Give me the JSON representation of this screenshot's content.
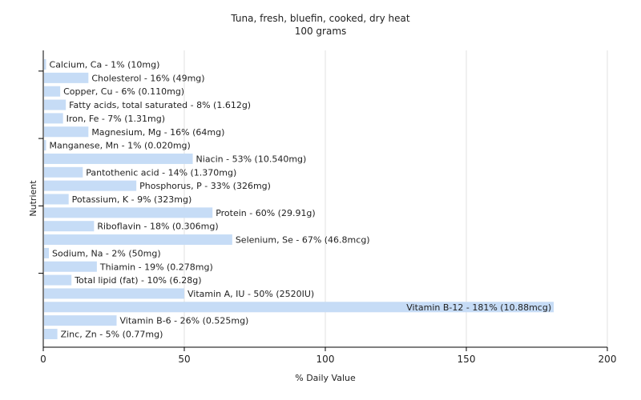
{
  "chart_data": {
    "type": "bar",
    "orientation": "horizontal",
    "title": "Tuna, fresh, bluefin, cooked, dry heat",
    "subtitle": "100 grams",
    "xlabel": "% Daily Value",
    "ylabel": "Nutrient",
    "xlim": [
      0,
      200
    ],
    "xticks": [
      0,
      50,
      100,
      150,
      200
    ],
    "grid": true,
    "bar_color": "#c6dcf6",
    "categories": [
      "Calcium, Ca",
      "Cholesterol",
      "Copper, Cu",
      "Fatty acids, total saturated",
      "Iron, Fe",
      "Magnesium, Mg",
      "Manganese, Mn",
      "Niacin",
      "Pantothenic acid",
      "Phosphorus, P",
      "Potassium, K",
      "Protein",
      "Riboflavin",
      "Selenium, Se",
      "Sodium, Na",
      "Thiamin",
      "Total lipid (fat)",
      "Vitamin A, IU",
      "Vitamin B-12",
      "Vitamin B-6",
      "Zinc, Zn"
    ],
    "values": [
      1,
      16,
      6,
      8,
      7,
      16,
      1,
      53,
      14,
      33,
      9,
      60,
      18,
      67,
      2,
      19,
      10,
      50,
      181,
      26,
      5
    ],
    "labels": [
      "Calcium, Ca - 1% (10mg)",
      "Cholesterol - 16% (49mg)",
      "Copper, Cu - 6% (0.110mg)",
      "Fatty acids, total saturated - 8% (1.612g)",
      "Iron, Fe - 7% (1.31mg)",
      "Magnesium, Mg - 16% (64mg)",
      "Manganese, Mn - 1% (0.020mg)",
      "Niacin - 53% (10.540mg)",
      "Pantothenic acid - 14% (1.370mg)",
      "Phosphorus, P - 33% (326mg)",
      "Potassium, K - 9% (323mg)",
      "Protein - 60% (29.91g)",
      "Riboflavin - 18% (0.306mg)",
      "Selenium, Se - 67% (46.8mcg)",
      "Sodium, Na - 2% (50mg)",
      "Thiamin - 19% (0.278mg)",
      "Total lipid (fat) - 10% (6.28g)",
      "Vitamin A, IU - 50% (2520IU)",
      "Vitamin B-12 - 181% (10.88mcg)",
      "Vitamin B-6 - 26% (0.525mg)",
      "Zinc, Zn - 5% (0.77mg)"
    ]
  }
}
